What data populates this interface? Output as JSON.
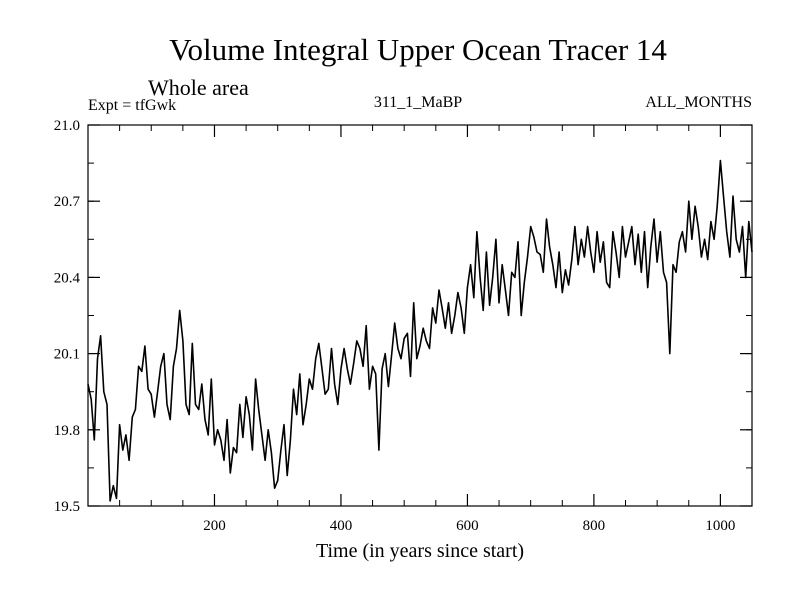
{
  "chart_data": {
    "type": "line",
    "title": "Volume Integral Upper Ocean Tracer 14",
    "subtitle": "Whole area",
    "expt_label": "Expt = tfGwk",
    "run_label": "311_1_MaBP",
    "months_label": "ALL_MONTHS",
    "xlabel": "Time (in years since start)",
    "ylabel": "",
    "xlim": [
      0,
      1050
    ],
    "ylim": [
      19.5,
      21.0
    ],
    "x_ticks": [
      200,
      400,
      600,
      800,
      1000
    ],
    "x_tick_labels": [
      "200",
      "400",
      "600",
      "800",
      "1000"
    ],
    "y_ticks": [
      19.5,
      19.8,
      20.1,
      20.4,
      20.7,
      21.0
    ],
    "y_tick_labels": [
      "19.5",
      "19.8",
      "20.1",
      "20.4",
      "20.7",
      "21.0"
    ],
    "series": [
      {
        "name": "Tracer 14",
        "color": "#000000",
        "x": [
          0,
          5,
          10,
          15,
          20,
          25,
          30,
          35,
          40,
          45,
          50,
          55,
          60,
          65,
          70,
          75,
          80,
          85,
          90,
          95,
          100,
          105,
          110,
          115,
          120,
          125,
          130,
          135,
          140,
          145,
          150,
          155,
          160,
          165,
          170,
          175,
          180,
          185,
          190,
          195,
          200,
          205,
          210,
          215,
          220,
          225,
          230,
          235,
          240,
          245,
          250,
          255,
          260,
          265,
          270,
          275,
          280,
          285,
          290,
          295,
          300,
          305,
          310,
          315,
          320,
          325,
          330,
          335,
          340,
          345,
          350,
          355,
          360,
          365,
          370,
          375,
          380,
          385,
          390,
          395,
          400,
          405,
          410,
          415,
          420,
          425,
          430,
          435,
          440,
          445,
          450,
          455,
          460,
          465,
          470,
          475,
          480,
          485,
          490,
          495,
          500,
          505,
          510,
          515,
          520,
          525,
          530,
          535,
          540,
          545,
          550,
          555,
          560,
          565,
          570,
          575,
          580,
          585,
          590,
          595,
          600,
          605,
          610,
          615,
          620,
          625,
          630,
          635,
          640,
          645,
          650,
          655,
          660,
          665,
          670,
          675,
          680,
          685,
          690,
          695,
          700,
          705,
          710,
          715,
          720,
          725,
          730,
          735,
          740,
          745,
          750,
          755,
          760,
          765,
          770,
          775,
          780,
          785,
          790,
          795,
          800,
          805,
          810,
          815,
          820,
          825,
          830,
          835,
          840,
          845,
          850,
          855,
          860,
          865,
          870,
          875,
          880,
          885,
          890,
          895,
          900,
          905,
          910,
          915,
          920,
          925,
          930,
          935,
          940,
          945,
          950,
          955,
          960,
          965,
          970,
          975,
          980,
          985,
          990,
          995,
          1000,
          1005,
          1010,
          1015,
          1020,
          1025,
          1030,
          1035,
          1040,
          1045,
          1050
        ],
        "y": [
          19.98,
          19.92,
          19.76,
          20.08,
          20.17,
          19.95,
          19.9,
          19.52,
          19.58,
          19.53,
          19.82,
          19.72,
          19.78,
          19.68,
          19.85,
          19.88,
          20.05,
          20.03,
          20.13,
          19.96,
          19.94,
          19.85,
          19.95,
          20.05,
          20.1,
          19.9,
          19.84,
          20.05,
          20.12,
          20.27,
          20.15,
          19.9,
          19.86,
          20.14,
          19.9,
          19.88,
          19.98,
          19.84,
          19.78,
          20.0,
          19.74,
          19.8,
          19.76,
          19.68,
          19.84,
          19.63,
          19.73,
          19.71,
          19.9,
          19.77,
          19.93,
          19.86,
          19.72,
          20.0,
          19.88,
          19.78,
          19.68,
          19.8,
          19.71,
          19.57,
          19.6,
          19.72,
          19.82,
          19.62,
          19.76,
          19.96,
          19.86,
          20.02,
          19.82,
          19.9,
          20.0,
          19.96,
          20.08,
          20.14,
          20.04,
          19.94,
          19.96,
          20.12,
          19.98,
          19.9,
          20.04,
          20.12,
          20.04,
          19.98,
          20.06,
          20.15,
          20.12,
          20.05,
          20.21,
          19.96,
          20.05,
          20.02,
          19.72,
          20.04,
          20.1,
          19.97,
          20.09,
          20.22,
          20.12,
          20.08,
          20.16,
          20.18,
          20.01,
          20.3,
          20.08,
          20.13,
          20.2,
          20.15,
          20.12,
          20.28,
          20.22,
          20.35,
          20.28,
          20.2,
          20.3,
          20.18,
          20.25,
          20.34,
          20.28,
          20.18,
          20.36,
          20.45,
          20.32,
          20.58,
          20.4,
          20.27,
          20.5,
          20.29,
          20.4,
          20.55,
          20.3,
          20.45,
          20.35,
          20.25,
          20.42,
          20.4,
          20.54,
          20.25,
          20.38,
          20.48,
          20.6,
          20.56,
          20.5,
          20.49,
          20.42,
          20.63,
          20.52,
          20.45,
          20.36,
          20.5,
          20.34,
          20.43,
          20.37,
          20.47,
          20.6,
          20.45,
          20.55,
          20.48,
          20.6,
          20.5,
          20.42,
          20.58,
          20.46,
          20.54,
          20.38,
          20.36,
          20.58,
          20.5,
          20.4,
          20.6,
          20.48,
          20.54,
          20.6,
          20.45,
          20.57,
          20.42,
          20.58,
          20.36,
          20.52,
          20.63,
          20.46,
          20.58,
          20.42,
          20.38,
          20.1,
          20.45,
          20.42,
          20.54,
          20.58,
          20.5,
          20.7,
          20.55,
          20.68,
          20.6,
          20.48,
          20.55,
          20.47,
          20.62,
          20.55,
          20.68,
          20.86,
          20.72,
          20.58,
          20.48,
          20.72,
          20.55,
          20.5,
          20.6,
          20.4,
          20.62,
          20.5
        ]
      }
    ]
  }
}
